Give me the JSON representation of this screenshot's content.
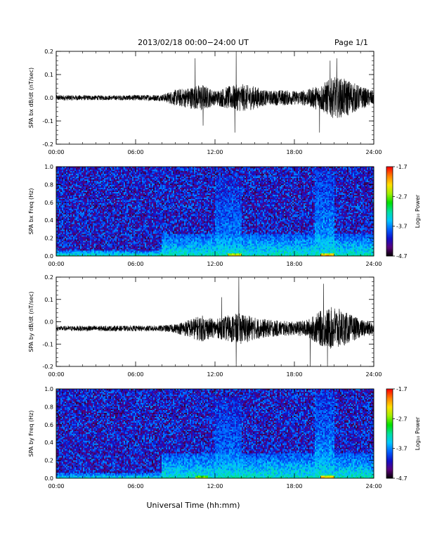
{
  "header": {
    "title": "2013/02/18  00:00−24:00 UT",
    "page": "Page 1/1"
  },
  "footer": {
    "xlabel": "Universal Time (hh:mm)"
  },
  "colorbar": {
    "label": "Log₁₀ Power",
    "ticks": [
      "-1.7",
      "-2.7",
      "-3.7",
      "-4.7"
    ],
    "tick_values": [
      -1.7,
      -2.7,
      -3.7,
      -4.7
    ],
    "range": [
      -4.7,
      -1.7
    ],
    "colormap": [
      "#000000",
      "#5a007a",
      "#1010c8",
      "#0060ff",
      "#00c8ff",
      "#00e0a0",
      "#00e000",
      "#a0f000",
      "#ffe000",
      "#ff8000",
      "#ff0000"
    ]
  },
  "x_ticks": [
    "00:00",
    "06:00",
    "12:00",
    "18:00",
    "24:00"
  ],
  "chart_data": [
    {
      "type": "line",
      "ylabel": "SPA bx dB/dt (nT/sec)",
      "xlabel": "",
      "x_ticks": [
        "00:00",
        "06:00",
        "12:00",
        "18:00",
        "24:00"
      ],
      "x_range_hours": [
        0,
        24
      ],
      "y_ticks": [
        "-0.2",
        "-0.1",
        "0.0",
        "0.1",
        "0.2"
      ],
      "ylim": [
        -0.2,
        0.2
      ],
      "grid": false,
      "envelope_hours": [
        0,
        2,
        4,
        6,
        8,
        9,
        10,
        11,
        12,
        13,
        14,
        15,
        16,
        17,
        18,
        19,
        20,
        21,
        22,
        23,
        24
      ],
      "envelope_amplitude": [
        0.012,
        0.011,
        0.01,
        0.012,
        0.014,
        0.035,
        0.045,
        0.06,
        0.03,
        0.05,
        0.06,
        0.05,
        0.03,
        0.035,
        0.03,
        0.035,
        0.06,
        0.09,
        0.08,
        0.05,
        0.03
      ],
      "spikes": [
        {
          "hour": 10.5,
          "value": 0.17
        },
        {
          "hour": 11.1,
          "value": -0.12
        },
        {
          "hour": 13.6,
          "value": 0.2
        },
        {
          "hour": 13.5,
          "value": -0.15
        },
        {
          "hour": 19.9,
          "value": -0.15
        },
        {
          "hour": 20.7,
          "value": 0.16
        },
        {
          "hour": 21.2,
          "value": 0.17
        }
      ]
    },
    {
      "type": "heatmap",
      "ylabel": "SPA bx Freq (Hz)",
      "xlabel": "",
      "x_ticks": [
        "00:00",
        "06:00",
        "12:00",
        "18:00",
        "24:00"
      ],
      "x_range_hours": [
        0,
        24
      ],
      "y_ticks": [
        "0.0",
        "0.2",
        "0.4",
        "0.6",
        "0.8",
        "1.0"
      ],
      "ylim": [
        0,
        1.0
      ],
      "value_range": [
        -4.7,
        -1.7
      ],
      "background_power": -4.1,
      "features": [
        {
          "hour_start": 0,
          "hour_end": 24,
          "freq_max": 0.06,
          "power": -3.2
        },
        {
          "hour_start": 8,
          "hour_end": 24,
          "freq_max": 0.25,
          "power": -3.3
        },
        {
          "hour_start": 12,
          "hour_end": 14,
          "freq_max": 0.9,
          "power": -3.6
        },
        {
          "hour_start": 19.5,
          "hour_end": 21,
          "freq_max": 0.95,
          "power": -3.5
        },
        {
          "hour_start": 20,
          "hour_end": 21,
          "freq_max": 0.03,
          "power": -2.0
        },
        {
          "hour_start": 13,
          "hour_end": 14,
          "freq_max": 0.03,
          "power": -2.2
        }
      ]
    },
    {
      "type": "line",
      "ylabel": "SPA by dB/dt (nT/sec)",
      "xlabel": "",
      "x_ticks": [
        "00:00",
        "06:00",
        "12:00",
        "18:00",
        "24:00"
      ],
      "x_range_hours": [
        0,
        24
      ],
      "y_ticks": [
        "-0.2",
        "-0.1",
        "0.0",
        "0.1",
        "0.2"
      ],
      "ylim": [
        -0.2,
        0.2
      ],
      "grid": false,
      "baseline": -0.03,
      "envelope_hours": [
        0,
        2,
        4,
        6,
        8,
        9,
        10,
        11,
        12,
        13,
        14,
        15,
        16,
        17,
        18,
        19,
        20,
        21,
        22,
        23,
        24
      ],
      "envelope_amplitude": [
        0.01,
        0.012,
        0.012,
        0.012,
        0.014,
        0.02,
        0.04,
        0.06,
        0.04,
        0.06,
        0.07,
        0.05,
        0.04,
        0.035,
        0.03,
        0.04,
        0.08,
        0.1,
        0.07,
        0.04,
        0.03
      ],
      "spikes": [
        {
          "hour": 13.8,
          "value": 0.2
        },
        {
          "hour": 13.6,
          "value": -0.2
        },
        {
          "hour": 19.2,
          "value": -0.2
        },
        {
          "hour": 20.2,
          "value": 0.17
        },
        {
          "hour": 20.5,
          "value": -0.2
        },
        {
          "hour": 12.5,
          "value": 0.11
        }
      ]
    },
    {
      "type": "heatmap",
      "ylabel": "SPA by Freq (Hz)",
      "xlabel": "Universal Time (hh:mm)",
      "x_ticks": [
        "00:00",
        "06:00",
        "12:00",
        "18:00",
        "24:00"
      ],
      "x_range_hours": [
        0,
        24
      ],
      "y_ticks": [
        "0.0",
        "0.2",
        "0.4",
        "0.6",
        "0.8",
        "1.0"
      ],
      "ylim": [
        0,
        1.0
      ],
      "value_range": [
        -4.7,
        -1.7
      ],
      "background_power": -4.1,
      "features": [
        {
          "hour_start": 0,
          "hour_end": 24,
          "freq_max": 0.06,
          "power": -3.3
        },
        {
          "hour_start": 8,
          "hour_end": 24,
          "freq_max": 0.28,
          "power": -3.3
        },
        {
          "hour_start": 12,
          "hour_end": 14,
          "freq_max": 0.9,
          "power": -3.6
        },
        {
          "hour_start": 19.5,
          "hour_end": 21,
          "freq_max": 0.95,
          "power": -3.5
        },
        {
          "hour_start": 20,
          "hour_end": 21,
          "freq_max": 0.03,
          "power": -2.0
        },
        {
          "hour_start": 10.5,
          "hour_end": 11.5,
          "freq_max": 0.03,
          "power": -2.4
        }
      ]
    }
  ]
}
